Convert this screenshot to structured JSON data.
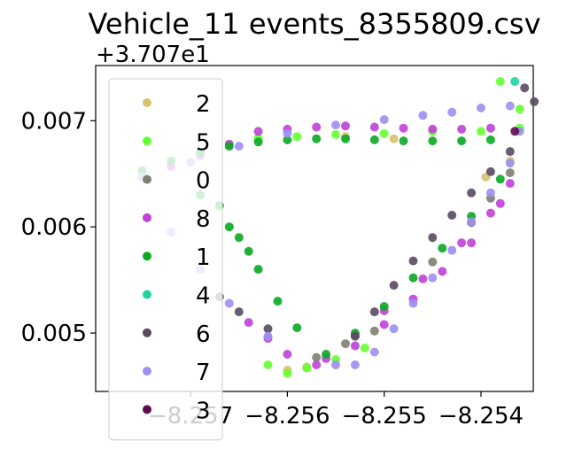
{
  "chart_data": {
    "type": "scatter",
    "title": "Vehicle_11 events_8355809.csv",
    "xlabel": "",
    "ylabel": "",
    "y_offset_text": "+3.707e1",
    "xlim": [
      -8.25798,
      -8.25346
    ],
    "ylim": [
      0.00445,
      0.00752
    ],
    "x_ticks": [
      {
        "value": -8.257,
        "label": "−8.257"
      },
      {
        "value": -8.256,
        "label": "−8.256"
      },
      {
        "value": -8.255,
        "label": "−8.255"
      },
      {
        "value": -8.254,
        "label": "−8.254"
      }
    ],
    "y_ticks": [
      {
        "value": 0.005,
        "label": "0.005"
      },
      {
        "value": 0.006,
        "label": "0.006"
      },
      {
        "value": 0.007,
        "label": "0.007"
      }
    ],
    "grid": false,
    "legend_position": "upper-left",
    "series": [
      {
        "name": "2",
        "color": "#d8c070",
        "x": [
          -8.2554,
          -8.2549,
          -8.2558,
          -8.256,
          -8.25395,
          -8.2537
        ],
        "y": [
          0.00685,
          0.00683,
          0.00468,
          0.00465,
          0.00647,
          0.00662
        ]
      },
      {
        "name": "5",
        "color": "#66ff33",
        "x": [
          -8.2563,
          -8.2559,
          -8.2555,
          -8.255,
          -8.2545,
          -8.254,
          -8.2536,
          -8.2536,
          -8.2538,
          -8.2552,
          -8.2555,
          -8.2558,
          -8.256,
          -8.2562
        ],
        "y": [
          0.00684,
          0.00685,
          0.00687,
          0.00688,
          0.0069,
          0.0069,
          0.00693,
          0.00711,
          0.00737,
          0.00486,
          0.00475,
          0.00467,
          0.00462,
          0.0047
        ]
      },
      {
        "name": "0",
        "color": "#808070",
        "x": [
          -8.2551,
          -8.2554,
          -8.2557,
          -8.2545,
          -8.2541,
          -8.2539,
          -8.2537
        ],
        "y": [
          0.00502,
          0.0049,
          0.00477,
          0.00567,
          0.00604,
          0.00627,
          0.00651
        ]
      },
      {
        "name": "8",
        "color": "#c040d8",
        "x": [
          -8.2572,
          -8.2569,
          -8.2566,
          -8.2563,
          -8.256,
          -8.2557,
          -8.2554,
          -8.2551,
          -8.2548,
          -8.2545,
          -8.2542,
          -8.2539,
          -8.2564,
          -8.2562,
          -8.256,
          -8.2557,
          -8.2553,
          -8.255,
          -8.2547,
          -8.2544,
          -8.2541,
          -8.2539,
          -8.2537,
          -8.2556,
          -8.2553,
          -8.255,
          -8.2546,
          -8.2542,
          -8.2538
        ],
        "y": [
          0.00657,
          0.00667,
          0.00678,
          0.0069,
          0.00692,
          0.00694,
          0.00695,
          0.00694,
          0.00693,
          0.00692,
          0.00692,
          0.00693,
          0.0051,
          0.00495,
          0.0048,
          0.0047,
          0.00488,
          0.00508,
          0.00532,
          0.00558,
          0.00585,
          0.00613,
          0.00641,
          0.00476,
          0.00498,
          0.00521,
          0.00551,
          0.00585,
          0.00622
        ]
      },
      {
        "name": "1",
        "color": "#0aa822",
        "x": [
          -8.2575,
          -8.2572,
          -8.2569,
          -8.2566,
          -8.2563,
          -8.256,
          -8.2557,
          -8.2554,
          -8.2551,
          -8.2548,
          -8.2545,
          -8.2542,
          -8.2539,
          -8.2567,
          -8.2565,
          -8.2563,
          -8.2561,
          -8.2559,
          -8.2556,
          -8.2553,
          -8.255,
          -8.2547,
          -8.2544,
          -8.2541,
          -8.2538,
          -8.2564,
          -8.2566,
          -8.2569
        ],
        "y": [
          0.00653,
          0.00662,
          0.0067,
          0.00676,
          0.0068,
          0.00682,
          0.00683,
          0.00683,
          0.00682,
          0.00681,
          0.00681,
          0.00681,
          0.00682,
          0.0062,
          0.0059,
          0.0056,
          0.0053,
          0.00505,
          0.0048,
          0.005,
          0.00525,
          0.00552,
          0.0058,
          0.0061,
          0.00645,
          0.00577,
          0.006,
          0.0063
        ]
      },
      {
        "name": "4",
        "color": "#20d0a0",
        "x": [
          -8.25365
        ],
        "y": [
          0.00737
        ]
      },
      {
        "name": "6",
        "color": "#5a4a60",
        "x": [
          -8.25355,
          -8.25345,
          -8.2537,
          -8.2539,
          -8.2541,
          -8.2543,
          -8.2545,
          -8.2547,
          -8.2549,
          -8.2551,
          -8.2553,
          -8.2562,
          -8.2565,
          -8.2567
        ],
        "y": [
          0.00731,
          0.00718,
          0.00671,
          0.00652,
          0.00632,
          0.00611,
          0.0059,
          0.00568,
          0.00545,
          0.0052,
          0.00497,
          0.00504,
          0.0052,
          0.00534
        ]
      },
      {
        "name": "7",
        "color": "#9f8ff0",
        "x": [
          -8.2575,
          -8.257,
          -8.2565,
          -8.256,
          -8.2555,
          -8.255,
          -8.2546,
          -8.2543,
          -8.254,
          -8.2537,
          -8.2536,
          -8.2537,
          -8.2539,
          -8.2541,
          -8.2543,
          -8.2545,
          -8.2547,
          -8.2549,
          -8.2551,
          -8.2553,
          -8.2555,
          -8.2572,
          -8.2569,
          -8.2566,
          -8.2562
        ],
        "y": [
          0.00647,
          0.00661,
          0.00676,
          0.00688,
          0.00696,
          0.00701,
          0.00705,
          0.00708,
          0.00712,
          0.00714,
          0.0069,
          0.0066,
          0.00632,
          0.00605,
          0.00578,
          0.00552,
          0.00528,
          0.00504,
          0.00482,
          0.0047,
          0.0047,
          0.00595,
          0.0056,
          0.00528,
          0.00497
        ]
      },
      {
        "name": "3",
        "color": "#5e0a50",
        "x": [
          -8.25365
        ],
        "y": [
          0.0069
        ]
      }
    ]
  }
}
